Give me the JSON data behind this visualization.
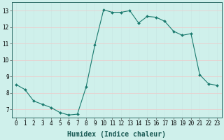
{
  "x": [
    0,
    1,
    2,
    3,
    4,
    5,
    6,
    7,
    8,
    9,
    10,
    11,
    12,
    13,
    14,
    15,
    16,
    17,
    18,
    19,
    20,
    21,
    22,
    23
  ],
  "y": [
    8.5,
    8.2,
    7.5,
    7.3,
    7.1,
    6.8,
    6.65,
    6.7,
    8.35,
    10.9,
    13.05,
    12.9,
    12.9,
    13.0,
    12.25,
    12.65,
    12.6,
    12.35,
    11.75,
    11.5,
    11.6,
    9.1,
    8.55,
    8.45
  ],
  "line_color": "#1a7a6e",
  "marker": "D",
  "marker_size": 2,
  "bg_color": "#cff0eb",
  "grid_color_major": "#f0c8c8",
  "grid_color_minor": "#c8e8e4",
  "xlabel": "Humidex (Indice chaleur)",
  "ylim": [
    6.5,
    13.5
  ],
  "xlim": [
    -0.5,
    23.5
  ],
  "yticks": [
    7,
    8,
    9,
    10,
    11,
    12,
    13
  ],
  "xticks": [
    0,
    1,
    2,
    3,
    4,
    5,
    6,
    7,
    8,
    9,
    10,
    11,
    12,
    13,
    14,
    15,
    16,
    17,
    18,
    19,
    20,
    21,
    22,
    23
  ],
  "tick_fontsize": 5.5,
  "xlabel_fontsize": 7
}
